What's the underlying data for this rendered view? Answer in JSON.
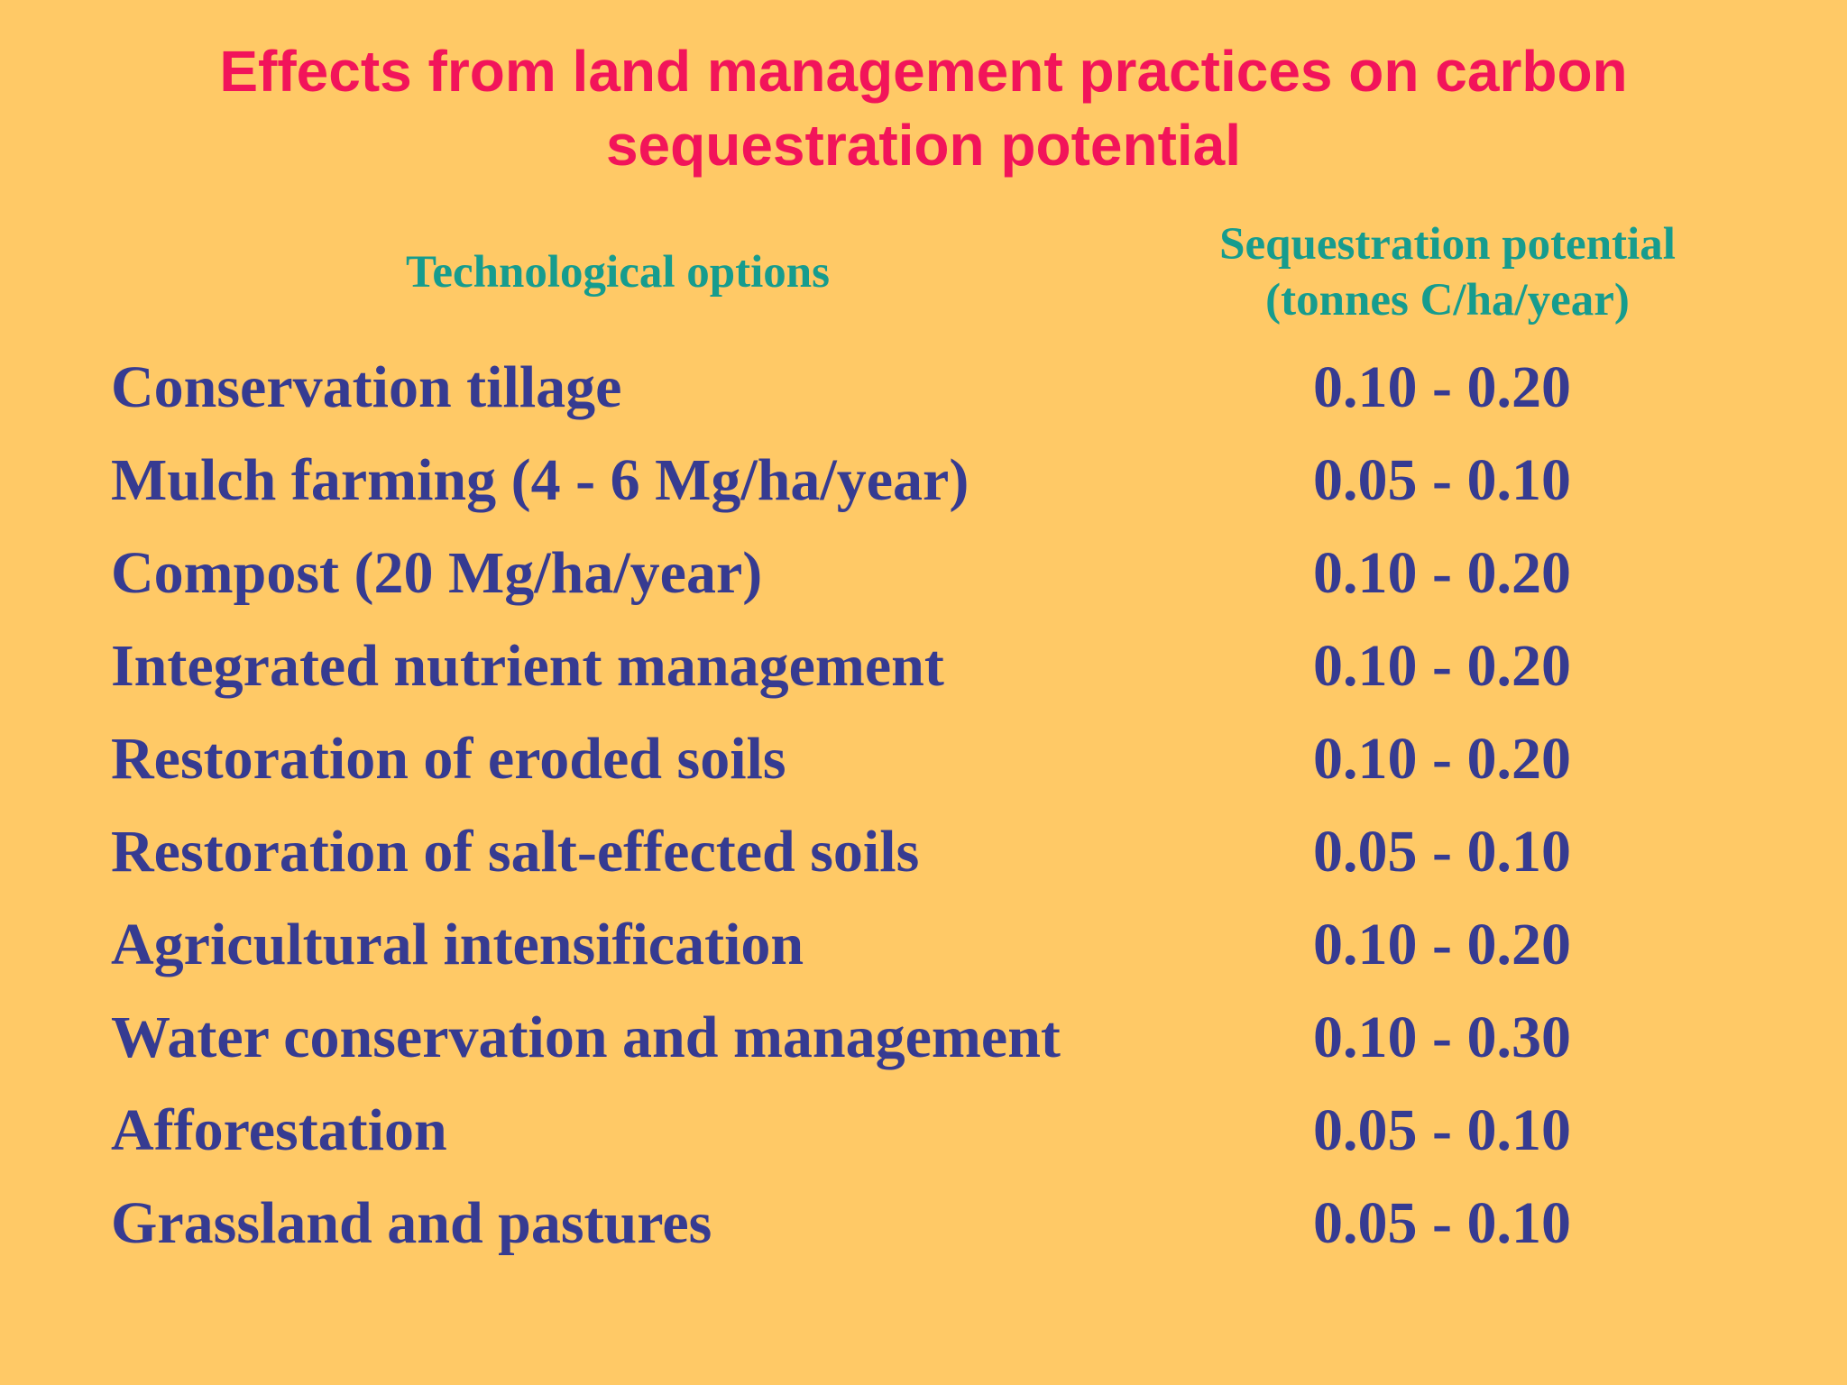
{
  "slide": {
    "title_line1": "Effects from land management practices on carbon",
    "title_line2": "sequestration potential",
    "header_options": "Technological options",
    "header_potential_line1": "Sequestration potential",
    "header_potential_line2": "(tonnes C/ha/year)",
    "rows": [
      {
        "option": "Conservation tillage",
        "value": "0.10 - 0.20"
      },
      {
        "option": "Mulch farming (4 - 6 Mg/ha/year)",
        "value": "0.05 - 0.10"
      },
      {
        "option": "Compost (20 Mg/ha/year)",
        "value": "0.10 - 0.20"
      },
      {
        "option": "Integrated nutrient management",
        "value": "0.10 - 0.20"
      },
      {
        "option": "Restoration of eroded soils",
        "value": "0.10 - 0.20"
      },
      {
        "option": "Restoration of salt-effected soils",
        "value": "0.05 - 0.10"
      },
      {
        "option": "Agricultural intensification",
        "value": "0.10 - 0.20"
      },
      {
        "option": "Water conservation and management",
        "value": "0.10 - 0.30"
      },
      {
        "option": "Afforestation",
        "value": "0.05 - 0.10"
      },
      {
        "option": "Grassland and pastures",
        "value": "0.05 - 0.10"
      }
    ]
  },
  "colors": {
    "background": "#FFC966",
    "title": "#F2145A",
    "header": "#169C8E",
    "body_text": "#363B91"
  }
}
